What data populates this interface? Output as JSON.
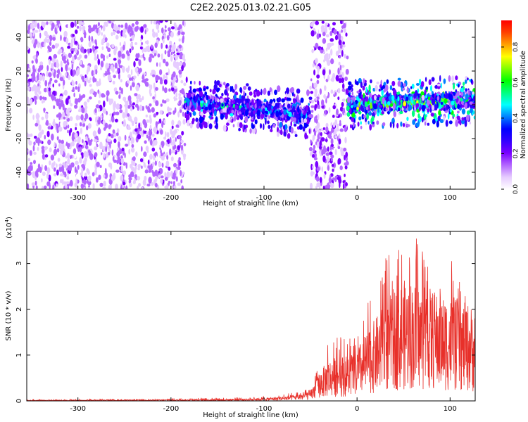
{
  "page": {
    "title": "C2E2.2025.013.02.21.G05"
  },
  "chart_data": [
    {
      "type": "heatmap",
      "title": "C2E2.2025.013.02.21.G05",
      "xlabel": "Height of straight line (km)",
      "ylabel": "Frequency (Hz)",
      "xlim": [
        -355,
        127
      ],
      "ylim": [
        -50,
        50
      ],
      "x_ticks": [
        -300,
        -200,
        -100,
        0,
        100
      ],
      "x_tick_labels": [
        "-300",
        "-200",
        "-100",
        "0",
        "100"
      ],
      "y_ticks": [
        -40,
        -20,
        0,
        20,
        40
      ],
      "y_tick_labels": [
        "-40",
        "-20",
        "0",
        "20",
        "40"
      ],
      "colorbar": {
        "label": "Normalized spectral amplitude",
        "range": [
          0,
          0.95
        ],
        "ticks": [
          0.0,
          0.2,
          0.4,
          0.6,
          0.8
        ],
        "tick_labels": [
          "0.0",
          "0.2",
          "0.4",
          "0.6",
          "0.8"
        ],
        "colormap": [
          "#ffffff",
          "#e6ccff",
          "#b366ff",
          "#7a00ff",
          "#3300ff",
          "#0000ff",
          "#0080ff",
          "#00ffff",
          "#00ff80",
          "#00ff00",
          "#80ff00",
          "#ffff00",
          "#ffa000",
          "#ff4000",
          "#ff0000"
        ]
      },
      "regions": [
        {
          "x_range": [
            -355,
            -185
          ],
          "description_level": 0.15,
          "freq_center": 0
        },
        {
          "x_range": [
            -185,
            -50
          ],
          "band_freq_center_start": 2,
          "band_freq_center_end": -6,
          "peak_level": 0.45
        },
        {
          "x_range": [
            -50,
            -10
          ],
          "description_level": 0.2,
          "freq_center": 0
        },
        {
          "x_range": [
            -10,
            127
          ],
          "band_freq_center_start": 0,
          "band_freq_center_end": 3,
          "peak_level": 0.7
        }
      ],
      "grid": false
    },
    {
      "type": "line",
      "xlabel": "Height of straight line (km)",
      "ylabel": "SNR (10 * v/v)",
      "y_multiplier_label": "(x10",
      "y_multiplier_exponent": "4",
      "y_multiplier_close": ")",
      "xlim": [
        -355,
        127
      ],
      "ylim": [
        0,
        3.7
      ],
      "x_ticks": [
        -300,
        -200,
        -100,
        0,
        100
      ],
      "x_tick_labels": [
        "-300",
        "-200",
        "-100",
        "0",
        "100"
      ],
      "y_ticks": [
        0,
        1,
        2,
        3
      ],
      "y_tick_labels": [
        "0",
        "1",
        "2",
        "3"
      ],
      "series": [
        {
          "color": "#e8302a",
          "envelope": {
            "x": [
              -355,
              -250,
              -180,
              -120,
              -100,
              -80,
              -60,
              -50,
              -45,
              -40,
              -30,
              -20,
              -10,
              0,
              10,
              20,
              30,
              40,
              50,
              60,
              70,
              80,
              90,
              100,
              110,
              120,
              127
            ],
            "y_mean": [
              0.01,
              0.015,
              0.02,
              0.03,
              0.04,
              0.06,
              0.1,
              0.15,
              0.25,
              0.4,
              0.55,
              0.6,
              0.6,
              0.7,
              0.9,
              1.1,
              1.3,
              1.5,
              1.6,
              1.6,
              1.5,
              1.5,
              1.4,
              1.4,
              1.3,
              1.3,
              1.2
            ],
            "y_peak": [
              0.03,
              0.04,
              0.06,
              0.08,
              0.1,
              0.15,
              0.2,
              0.3,
              0.7,
              0.9,
              1.4,
              1.5,
              1.4,
              1.4,
              2.0,
              2.8,
              3.3,
              3.35,
              3.3,
              3.7,
              3.35,
              3.0,
              2.9,
              3.2,
              2.6,
              3.0,
              2.5
            ]
          }
        }
      ],
      "grid": false
    }
  ]
}
